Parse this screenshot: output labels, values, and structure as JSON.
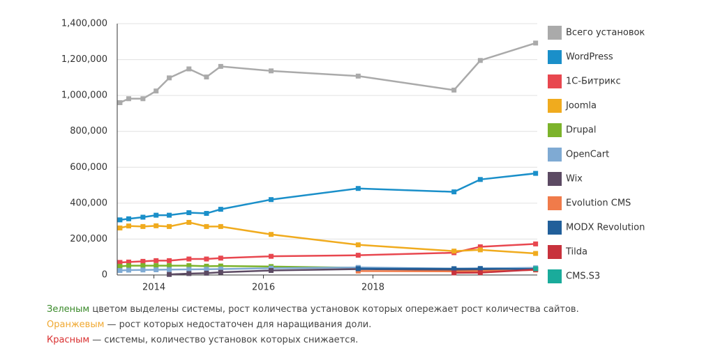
{
  "chart_data": {
    "type": "line",
    "x": [
      2013.38,
      2013.54,
      2013.8,
      2014.04,
      2014.28,
      2014.64,
      2014.96,
      2015.22,
      2016.14,
      2017.73,
      2019.48,
      2019.96,
      2020.97
    ],
    "xlim": [
      2013.33,
      2021.0
    ],
    "xticks": [
      2014,
      2016,
      2018
    ],
    "ylim": [
      0,
      1400000
    ],
    "yticks": [
      0,
      {
        "value": 200000,
        "label": "200,000"
      },
      {
        "value": 400000,
        "label": "400,000"
      },
      {
        "value": 600000,
        "label": "600,000"
      },
      {
        "value": 800000,
        "label": "800,000"
      },
      {
        "value": 1000000,
        "label": "1,000,000"
      },
      {
        "value": 1200000,
        "label": "1,200,000"
      },
      {
        "value": 1400000,
        "label": "1,400,000"
      }
    ],
    "grid": true,
    "legend": "right",
    "series": [
      {
        "name": "Всего установок",
        "color": "#aaaaaa",
        "values": [
          960000,
          982000,
          982000,
          1025000,
          1098000,
          1148000,
          1103000,
          1162000,
          1137000,
          1108000,
          1030000,
          1195000,
          1292000
        ]
      },
      {
        "name": "WordPress",
        "color": "#1a8fc9",
        "values": [
          307000,
          313000,
          322000,
          333000,
          333000,
          347000,
          343000,
          366000,
          420000,
          482000,
          463000,
          532000,
          566000
        ]
      },
      {
        "name": "1С-Битрикс",
        "color": "#e8474f",
        "values": [
          70000,
          72000,
          76000,
          80000,
          80000,
          89000,
          89000,
          94000,
          104000,
          110000,
          124000,
          157000,
          173000
        ]
      },
      {
        "name": "Joomla",
        "color": "#f0ab1e",
        "values": [
          262000,
          273000,
          270000,
          274000,
          270000,
          293000,
          270000,
          270000,
          226000,
          168000,
          133000,
          140000,
          120000
        ]
      },
      {
        "name": "Drupal",
        "color": "#7cb32b",
        "values": [
          48000,
          52000,
          52000,
          52000,
          52000,
          52000,
          49000,
          50000,
          47000,
          40000,
          32000,
          32000,
          33000
        ]
      },
      {
        "name": "OpenCart",
        "color": "#7faad3",
        "values": [
          25000,
          27000,
          28000,
          29000,
          30000,
          31000,
          32000,
          33000,
          38000,
          42000,
          35000,
          37000,
          40000
        ]
      },
      {
        "name": "Wix",
        "color": "#5c4a63",
        "values": [
          null,
          null,
          null,
          null,
          3000,
          8000,
          10000,
          15000,
          25000,
          33000,
          28000,
          30000,
          33000
        ]
      },
      {
        "name": "Evolution CMS",
        "color": "#f07b4a",
        "values": [
          null,
          null,
          null,
          null,
          null,
          null,
          null,
          null,
          null,
          22000,
          20000,
          22000,
          28000
        ]
      },
      {
        "name": "MODX Revolution",
        "color": "#215f9a",
        "values": [
          null,
          null,
          null,
          null,
          null,
          null,
          null,
          null,
          null,
          35000,
          35000,
          35000,
          33000
        ]
      },
      {
        "name": "Tilda",
        "color": "#c8323c",
        "values": [
          null,
          null,
          null,
          null,
          null,
          null,
          null,
          null,
          null,
          null,
          12000,
          13000,
          30000
        ]
      },
      {
        "name": "CMS.S3",
        "color": "#1aab9b",
        "values": [
          null,
          null,
          null,
          null,
          null,
          null,
          null,
          null,
          null,
          null,
          null,
          null,
          35000
        ]
      }
    ]
  },
  "notes": [
    {
      "highlight": "Зеленым",
      "color": "#3a8a2a",
      "text": " цветом выделены системы, рост количества установок которых опережает рост количества сайтов."
    },
    {
      "highlight": "Оранжевым",
      "color": "#f0a830",
      "text": " — рост которых недостаточен для наращивания доли."
    },
    {
      "highlight": "Красным",
      "color": "#d93030",
      "text": " — системы, количество установок которых снижается."
    }
  ]
}
